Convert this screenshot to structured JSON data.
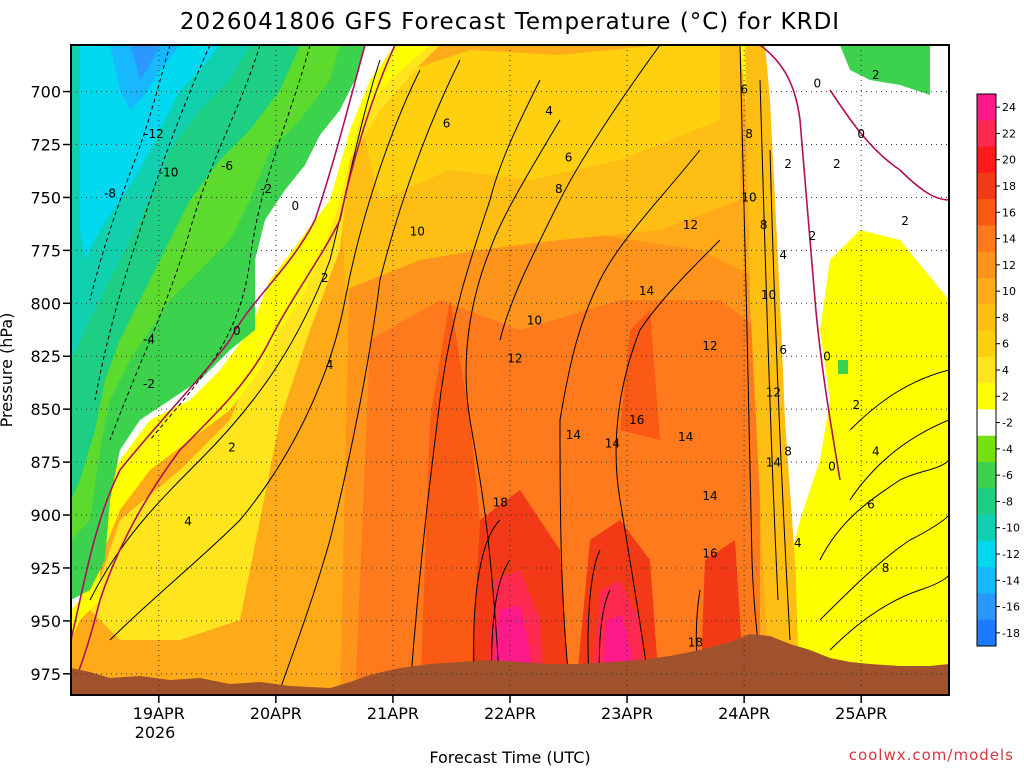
{
  "chart_data": {
    "type": "heatmap",
    "title": "2026041806 GFS Forecast Temperature (°C) for KRDI",
    "xlabel": "Forecast Time (UTC)",
    "ylabel": "Pressure (hPa)",
    "x_tick_labels": [
      "19APR",
      "20APR",
      "21APR",
      "22APR",
      "23APR",
      "24APR",
      "25APR"
    ],
    "x_tick_sublabel": "2026",
    "y_ticks": [
      700,
      725,
      750,
      775,
      800,
      825,
      850,
      875,
      900,
      925,
      950,
      975
    ],
    "y_tick_labels": [
      "700",
      "725",
      "750",
      "775",
      "800",
      "825",
      "850",
      "875",
      "900",
      "925",
      "950",
      "975"
    ],
    "xlim_hours": [
      0,
      180
    ],
    "ylim_hpa": [
      678,
      985
    ],
    "grid": true,
    "colorbar": {
      "levels": [
        24,
        22,
        20,
        18,
        16,
        14,
        12,
        10,
        8,
        6,
        4,
        2,
        -2,
        -4,
        -6,
        -8,
        -10,
        -12,
        -14,
        -16,
        -18
      ],
      "labels": [
        "24",
        "22",
        "20",
        "18",
        "16",
        "14",
        "12",
        "10",
        "8",
        "6",
        "4",
        "2",
        "-2",
        "-4",
        "-6",
        "-8",
        "-10",
        "-12",
        "-14",
        "-16",
        "-18"
      ],
      "colors": [
        "#ff1a8c",
        "#ff2a50",
        "#ff1a1a",
        "#f23a16",
        "#fa5a14",
        "#ff7a1c",
        "#ff941c",
        "#ffaa18",
        "#ffbe14",
        "#ffd010",
        "#ffe41e",
        "#ffff00",
        "#ffffff",
        "#76e012",
        "#3cd24e",
        "#1ece82",
        "#10d0b0",
        "#00d8f0",
        "#18b8ff",
        "#2a98ff",
        "#1e7aff"
      ]
    },
    "contour_labels": [
      {
        "text": "-12",
        "hour": 17,
        "p": 722
      },
      {
        "text": "-10",
        "hour": 20,
        "p": 740
      },
      {
        "text": "-6",
        "hour": 32,
        "p": 737
      },
      {
        "text": "-8",
        "hour": 8,
        "p": 750
      },
      {
        "text": "-2",
        "hour": 40,
        "p": 748
      },
      {
        "text": "-4",
        "hour": 16,
        "p": 819
      },
      {
        "text": "-2",
        "hour": 16,
        "p": 840
      },
      {
        "text": "0",
        "hour": 46,
        "p": 756
      },
      {
        "text": "0",
        "hour": 34,
        "p": 815
      },
      {
        "text": "2",
        "hour": 52,
        "p": 790
      },
      {
        "text": "2",
        "hour": 33,
        "p": 870
      },
      {
        "text": "4",
        "hour": 53,
        "p": 831
      },
      {
        "text": "4",
        "hour": 24,
        "p": 905
      },
      {
        "text": "6",
        "hour": 77,
        "p": 717
      },
      {
        "text": "4",
        "hour": 98,
        "p": 711
      },
      {
        "text": "6",
        "hour": 102,
        "p": 733
      },
      {
        "text": "8",
        "hour": 100,
        "p": 748
      },
      {
        "text": "10",
        "hour": 71,
        "p": 768
      },
      {
        "text": "12",
        "hour": 127,
        "p": 765
      },
      {
        "text": "10",
        "hour": 95,
        "p": 810
      },
      {
        "text": "12",
        "hour": 91,
        "p": 828
      },
      {
        "text": "14",
        "hour": 118,
        "p": 796
      },
      {
        "text": "12",
        "hour": 131,
        "p": 822
      },
      {
        "text": "14",
        "hour": 103,
        "p": 864
      },
      {
        "text": "16",
        "hour": 116,
        "p": 857
      },
      {
        "text": "14",
        "hour": 111,
        "p": 868
      },
      {
        "text": "14",
        "hour": 126,
        "p": 865
      },
      {
        "text": "18",
        "hour": 88,
        "p": 896
      },
      {
        "text": "14",
        "hour": 131,
        "p": 893
      },
      {
        "text": "16",
        "hour": 131,
        "p": 920
      },
      {
        "text": "18",
        "hour": 128,
        "p": 962
      },
      {
        "text": "6",
        "hour": 138,
        "p": 701
      },
      {
        "text": "8",
        "hour": 139,
        "p": 722
      },
      {
        "text": "10",
        "hour": 139,
        "p": 752
      },
      {
        "text": "8",
        "hour": 142,
        "p": 765
      },
      {
        "text": "4",
        "hour": 146,
        "p": 779
      },
      {
        "text": "10",
        "hour": 143,
        "p": 798
      },
      {
        "text": "6",
        "hour": 146,
        "p": 824
      },
      {
        "text": "12",
        "hour": 144,
        "p": 844
      },
      {
        "text": "8",
        "hour": 147,
        "p": 872
      },
      {
        "text": "14",
        "hour": 144,
        "p": 877
      },
      {
        "text": "4",
        "hour": 149,
        "p": 915
      },
      {
        "text": "0",
        "hour": 153,
        "p": 698
      },
      {
        "text": "2",
        "hour": 165,
        "p": 694
      },
      {
        "text": "0",
        "hour": 162,
        "p": 722
      },
      {
        "text": "2",
        "hour": 147,
        "p": 736
      },
      {
        "text": "2",
        "hour": 157,
        "p": 736
      },
      {
        "text": "2",
        "hour": 152,
        "p": 770
      },
      {
        "text": "2",
        "hour": 171,
        "p": 763
      },
      {
        "text": "0",
        "hour": 155,
        "p": 827
      },
      {
        "text": "2",
        "hour": 161,
        "p": 850
      },
      {
        "text": "4",
        "hour": 165,
        "p": 872
      },
      {
        "text": "0",
        "hour": 156,
        "p": 879
      },
      {
        "text": "6",
        "hour": 164,
        "p": 897
      },
      {
        "text": "8",
        "hour": 167,
        "p": 927
      }
    ]
  },
  "credit": "coolwx.com/models"
}
